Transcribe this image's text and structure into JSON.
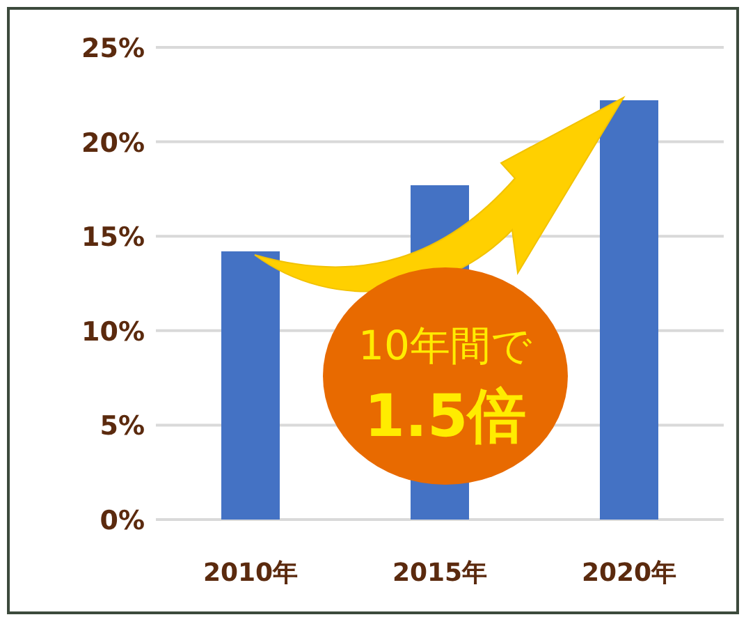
{
  "chart_data": {
    "type": "bar",
    "categories": [
      "2010年",
      "2015年",
      "2020年"
    ],
    "values": [
      14.2,
      17.7,
      22.2
    ],
    "color": "#4472c4",
    "ylim": [
      0,
      25
    ],
    "yticks": [
      {
        "value": 0,
        "label": "0%"
      },
      {
        "value": 5,
        "label": "5%"
      },
      {
        "value": 10,
        "label": "10%"
      },
      {
        "value": 15,
        "label": "15%"
      },
      {
        "value": 20,
        "label": "20%"
      },
      {
        "value": 25,
        "label": "25%"
      }
    ],
    "grid": "y",
    "annotations": [
      "10年間で",
      "1.5倍"
    ]
  }
}
